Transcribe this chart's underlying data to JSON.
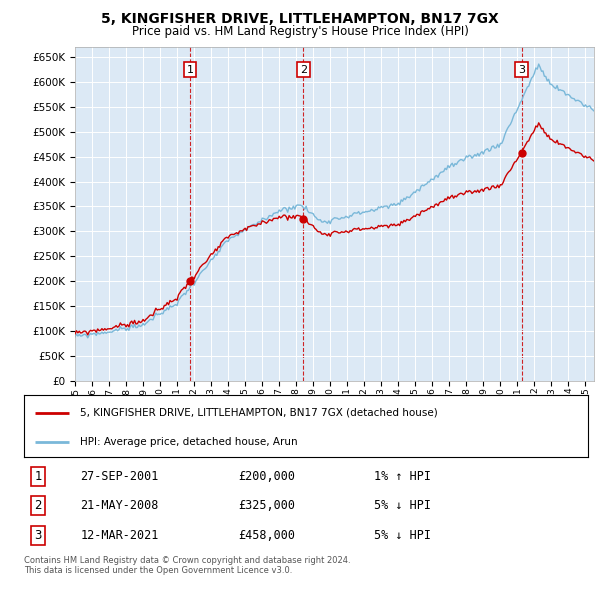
{
  "title": "5, KINGFISHER DRIVE, LITTLEHAMPTON, BN17 7GX",
  "subtitle": "Price paid vs. HM Land Registry's House Price Index (HPI)",
  "ylim": [
    0,
    670000
  ],
  "yticks": [
    0,
    50000,
    100000,
    150000,
    200000,
    250000,
    300000,
    350000,
    400000,
    450000,
    500000,
    550000,
    600000,
    650000
  ],
  "background_color": "#dce9f5",
  "plot_bg_color": "#dce9f5",
  "hpi_color": "#7ab8d9",
  "price_color": "#cc0000",
  "vline_color": "#cc0000",
  "transactions": [
    {
      "num": 1,
      "date": "27-SEP-2001",
      "price": 200000,
      "hpi_pct": "1% ↑ HPI"
    },
    {
      "num": 2,
      "date": "21-MAY-2008",
      "price": 325000,
      "hpi_pct": "5% ↓ HPI"
    },
    {
      "num": 3,
      "date": "12-MAR-2021",
      "price": 458000,
      "hpi_pct": "5% ↓ HPI"
    }
  ],
  "legend_label_price": "5, KINGFISHER DRIVE, LITTLEHAMPTON, BN17 7GX (detached house)",
  "legend_label_hpi": "HPI: Average price, detached house, Arun",
  "footer": "Contains HM Land Registry data © Crown copyright and database right 2024.\nThis data is licensed under the Open Government Licence v3.0."
}
